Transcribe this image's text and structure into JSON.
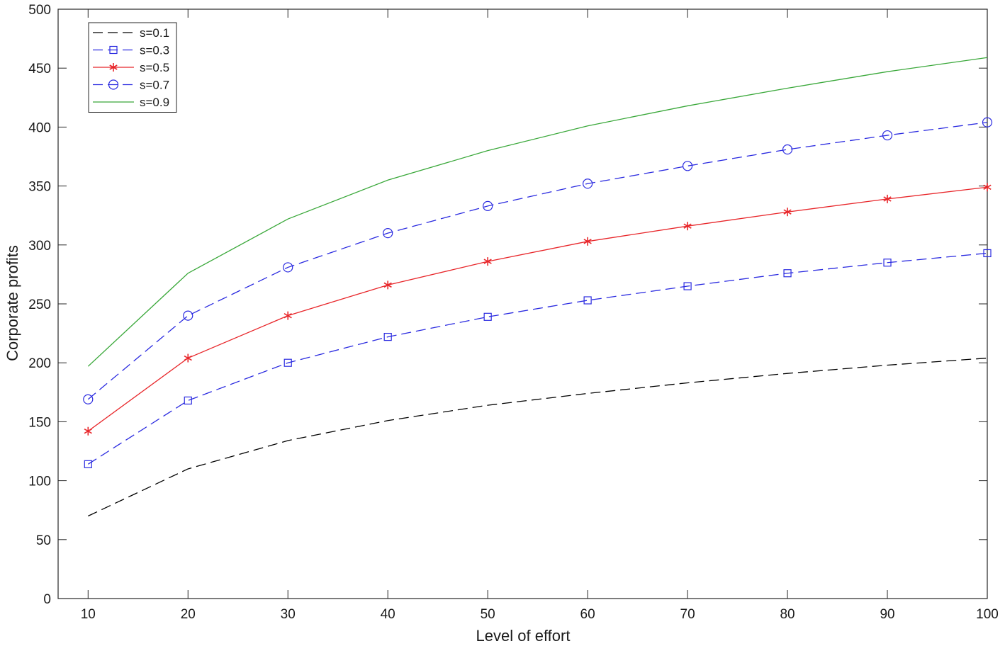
{
  "chart_data": {
    "type": "line",
    "xlabel": "Level of effort",
    "ylabel": "Corporate profits",
    "xlim": [
      7,
      100
    ],
    "ylim": [
      0,
      500
    ],
    "x_ticks": [
      10,
      20,
      30,
      40,
      50,
      60,
      70,
      80,
      90,
      100
    ],
    "y_ticks": [
      0,
      50,
      100,
      150,
      200,
      250,
      300,
      350,
      400,
      450,
      500
    ],
    "grid": false,
    "legend_position": "top-left",
    "x": [
      10,
      20,
      30,
      40,
      50,
      60,
      70,
      80,
      90,
      100
    ],
    "series": [
      {
        "name": "s=0.1",
        "color": "#000000",
        "line": "dashed",
        "marker": "none",
        "values": [
          70,
          110,
          134,
          151,
          164,
          174,
          183,
          191,
          198,
          204
        ]
      },
      {
        "name": "s=0.3",
        "color": "#2a2ae0",
        "line": "dashed",
        "marker": "square",
        "values": [
          114,
          168,
          200,
          222,
          239,
          253,
          265,
          276,
          285,
          293
        ]
      },
      {
        "name": "s=0.5",
        "color": "#e8262a",
        "line": "solid",
        "marker": "asterisk",
        "values": [
          142,
          204,
          240,
          266,
          286,
          303,
          316,
          328,
          339,
          349
        ]
      },
      {
        "name": "s=0.7",
        "color": "#2a2ae0",
        "line": "dashed",
        "marker": "circle",
        "values": [
          169,
          240,
          281,
          310,
          333,
          352,
          367,
          381,
          393,
          404
        ]
      },
      {
        "name": "s=0.9",
        "color": "#3aa83a",
        "line": "solid",
        "marker": "none",
        "values": [
          197,
          276,
          322,
          355,
          380,
          401,
          418,
          433,
          447,
          459
        ]
      }
    ]
  }
}
